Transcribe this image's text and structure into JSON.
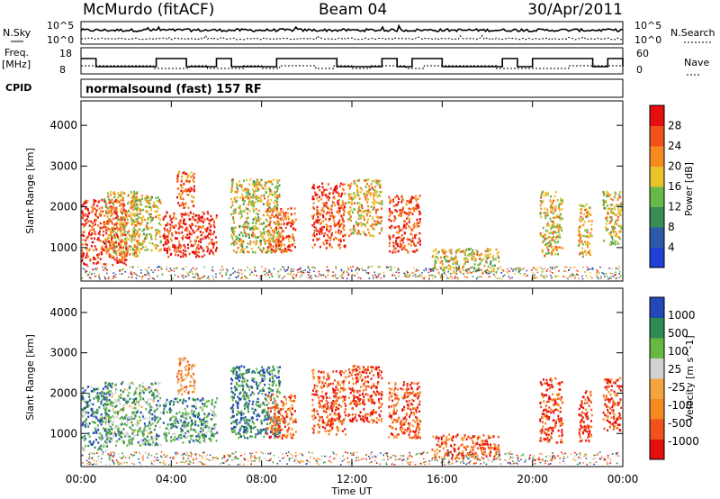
{
  "header": {
    "station": "McMurdo (fitACF)",
    "beam": "Beam 04",
    "date": "30/Apr/2011"
  },
  "noise_panel": {
    "left_label": "N.Sky",
    "right_label": "N.Search",
    "ytick_top": "10^5",
    "ytick_bottom": "10^0"
  },
  "freq_panel": {
    "left_label_line1": "Freq.",
    "left_label_line2": "[MHz]",
    "left_ticks": [
      "18",
      "8"
    ],
    "right_label": "Nave",
    "right_ticks": [
      "60",
      "0"
    ]
  },
  "cpid": {
    "label": "CPID",
    "mode_text": "normalsound (fast) 157 RF"
  },
  "colors": {
    "power": [
      "#1f3fd6",
      "#2d5aa8",
      "#3a8c55",
      "#67b94a",
      "#e8c32a",
      "#f58a1f",
      "#f0521c",
      "#e60d10"
    ],
    "velocity": [
      "#e60d10",
      "#f0521c",
      "#f58a1f",
      "#f3a640",
      "#d2d2d2",
      "#68b944",
      "#2f8a52",
      "#2348b8"
    ]
  },
  "chart_data": [
    {
      "type": "heatmap",
      "name": "Power",
      "xlabel": "",
      "ylabel": "Slant Range [km]",
      "x_ticks": [
        "00:00",
        "04:00",
        "08:00",
        "12:00",
        "16:00",
        "20:00",
        "00:00"
      ],
      "y_ticks": [
        "1000",
        "2000",
        "3000",
        "4000"
      ],
      "xlim_hours": [
        0,
        24
      ],
      "ylim_km": [
        180,
        4600
      ],
      "colorbar": {
        "label": "Power [dB]",
        "ticks": [
          "4",
          "8",
          "12",
          "16",
          "20",
          "24",
          "28"
        ]
      },
      "echo_regions": [
        {
          "t0": 0.0,
          "t1": 2.0,
          "r0": 600,
          "r1": 2200,
          "level": 0.85
        },
        {
          "t0": 1.0,
          "t1": 2.5,
          "r0": 800,
          "r1": 2400,
          "level": 0.6
        },
        {
          "t0": 2.2,
          "t1": 3.5,
          "r0": 900,
          "r1": 2300,
          "level": 0.55
        },
        {
          "t0": 3.6,
          "t1": 6.0,
          "r0": 800,
          "r1": 1900,
          "level": 0.9
        },
        {
          "t0": 4.2,
          "t1": 5.0,
          "r0": 2000,
          "r1": 2900,
          "level": 0.8
        },
        {
          "t0": 6.6,
          "t1": 8.8,
          "r0": 900,
          "r1": 2700,
          "level": 0.55
        },
        {
          "t0": 8.2,
          "t1": 9.5,
          "r0": 900,
          "r1": 2000,
          "level": 0.8
        },
        {
          "t0": 10.2,
          "t1": 11.7,
          "r0": 1000,
          "r1": 2600,
          "level": 0.85
        },
        {
          "t0": 11.8,
          "t1": 13.3,
          "r0": 1300,
          "r1": 2700,
          "level": 0.6
        },
        {
          "t0": 13.6,
          "t1": 15.0,
          "r0": 900,
          "r1": 2300,
          "level": 0.85
        },
        {
          "t0": 15.5,
          "t1": 18.5,
          "r0": 400,
          "r1": 1000,
          "level": 0.55
        },
        {
          "t0": 20.3,
          "t1": 21.3,
          "r0": 800,
          "r1": 2400,
          "level": 0.6
        },
        {
          "t0": 22.0,
          "t1": 22.6,
          "r0": 800,
          "r1": 2100,
          "level": 0.65
        },
        {
          "t0": 23.1,
          "t1": 24.0,
          "r0": 1100,
          "r1": 2400,
          "level": 0.55
        }
      ]
    },
    {
      "type": "heatmap",
      "name": "Velocity",
      "xlabel": "Time UT",
      "ylabel": "Slant Range [km]",
      "x_ticks": [
        "00:00",
        "04:00",
        "08:00",
        "12:00",
        "16:00",
        "20:00",
        "00:00"
      ],
      "y_ticks": [
        "1000",
        "2000",
        "3000",
        "4000"
      ],
      "xlim_hours": [
        0,
        24
      ],
      "ylim_km": [
        180,
        4600
      ],
      "colorbar": {
        "label": "Velocity [m s^-1]",
        "ticks": [
          "1000",
          "500",
          "100",
          "25",
          "-25",
          "-100",
          "-500",
          "-1000"
        ]
      },
      "echo_regions": [
        {
          "t0": 0.0,
          "t1": 1.2,
          "r0": 600,
          "r1": 2200,
          "level": 0.8
        },
        {
          "t0": 1.0,
          "t1": 3.5,
          "r0": 700,
          "r1": 2300,
          "level": 0.7
        },
        {
          "t0": 3.6,
          "t1": 6.0,
          "r0": 800,
          "r1": 1900,
          "level": 0.75
        },
        {
          "t0": 4.2,
          "t1": 5.0,
          "r0": 2000,
          "r1": 2900,
          "level": 0.35
        },
        {
          "t0": 6.6,
          "t1": 8.8,
          "r0": 900,
          "r1": 2700,
          "level": 0.85
        },
        {
          "t0": 8.2,
          "t1": 9.5,
          "r0": 900,
          "r1": 2000,
          "level": 0.25
        },
        {
          "t0": 10.2,
          "t1": 11.7,
          "r0": 1000,
          "r1": 2600,
          "level": 0.2
        },
        {
          "t0": 11.8,
          "t1": 13.3,
          "r0": 1300,
          "r1": 2700,
          "level": 0.15
        },
        {
          "t0": 13.6,
          "t1": 15.0,
          "r0": 900,
          "r1": 2300,
          "level": 0.2
        },
        {
          "t0": 15.5,
          "t1": 18.5,
          "r0": 400,
          "r1": 1000,
          "level": 0.2
        },
        {
          "t0": 20.3,
          "t1": 21.3,
          "r0": 800,
          "r1": 2400,
          "level": 0.15
        },
        {
          "t0": 22.0,
          "t1": 22.6,
          "r0": 800,
          "r1": 2100,
          "level": 0.1
        },
        {
          "t0": 23.1,
          "t1": 24.0,
          "r0": 1100,
          "r1": 2400,
          "level": 0.15
        }
      ]
    }
  ]
}
